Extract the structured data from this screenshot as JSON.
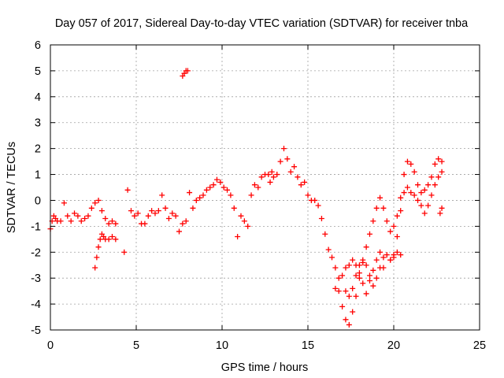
{
  "chart_data": {
    "type": "scatter",
    "title": "Day 057 of 2017, Sidereal Day-to-day VTEC variation (SDTVAR) for receiver tnba",
    "xlabel": "GPS time / hours",
    "ylabel": "SDTVAR / TECUs",
    "xlim": [
      0,
      25
    ],
    "ylim": [
      -5,
      6
    ],
    "xticks": [
      0,
      5,
      10,
      15,
      20,
      25
    ],
    "yticks": [
      -5,
      -4,
      -3,
      -2,
      -1,
      0,
      1,
      2,
      3,
      4,
      5,
      6
    ],
    "grid": true,
    "marker": "+",
    "series": [
      {
        "name": "SDTVAR",
        "color": "#ff0000",
        "x": [
          0.0,
          0.1,
          0.2,
          0.3,
          0.4,
          0.6,
          0.8,
          1.0,
          1.2,
          1.4,
          1.6,
          1.8,
          2.0,
          2.2,
          2.4,
          2.6,
          2.8,
          3.0,
          3.2,
          3.4,
          3.6,
          3.8,
          2.6,
          2.7,
          2.8,
          2.9,
          3.0,
          3.1,
          3.2,
          3.4,
          3.6,
          3.8,
          4.3,
          4.5,
          4.7,
          4.9,
          5.1,
          5.3,
          5.5,
          5.7,
          5.9,
          6.1,
          6.3,
          6.5,
          6.7,
          6.9,
          7.1,
          7.3,
          7.5,
          7.7,
          7.9,
          8.1,
          8.3,
          8.5,
          8.7,
          8.9,
          9.1,
          9.3,
          9.5,
          9.7,
          9.9,
          10.1,
          10.3,
          10.5,
          10.7,
          10.9,
          11.1,
          11.3,
          11.5,
          11.7,
          11.9,
          12.1,
          12.3,
          12.5,
          12.7,
          12.9,
          7.7,
          7.8,
          7.9,
          8.0,
          12.8,
          13.0,
          13.2,
          13.4,
          13.6,
          13.8,
          14.0,
          14.2,
          14.4,
          14.6,
          14.8,
          15.0,
          15.2,
          15.4,
          15.6,
          15.8,
          16.0,
          16.2,
          16.4,
          16.6,
          16.8,
          17.0,
          17.2,
          17.4,
          17.6,
          17.8,
          18.0,
          18.2,
          18.4,
          18.6,
          18.8,
          19.0,
          19.2,
          19.4,
          19.6,
          19.8,
          20.0,
          20.2,
          20.4,
          20.6,
          20.8,
          21.0,
          21.2,
          21.4,
          21.6,
          21.8,
          22.0,
          22.2,
          22.4,
          22.6,
          22.8,
          16.6,
          16.8,
          17.0,
          17.2,
          17.4,
          17.6,
          17.8,
          18.0,
          18.2,
          18.4,
          18.6,
          18.8,
          19.0,
          19.2,
          19.4,
          17.2,
          17.4,
          17.6,
          17.8,
          18.0,
          18.2,
          18.4,
          18.6,
          18.8,
          19.0,
          19.2,
          19.4,
          19.6,
          19.8,
          20.0,
          20.2,
          20.4,
          20.6,
          20.8,
          21.0,
          21.2,
          21.4,
          21.6,
          21.8,
          22.0,
          22.2,
          22.4,
          22.6,
          22.8,
          19.8,
          20.0,
          20.2,
          20.4,
          22.7,
          22.8
        ],
        "y": [
          -1.1,
          -0.8,
          -0.6,
          -0.7,
          -0.8,
          -0.8,
          -0.1,
          -0.6,
          -0.8,
          -0.5,
          -0.6,
          -0.8,
          -0.7,
          -0.6,
          -0.3,
          -0.1,
          0.0,
          -0.4,
          -0.7,
          -0.9,
          -0.8,
          -0.9,
          -2.6,
          -2.2,
          -1.8,
          -1.5,
          -1.3,
          -1.4,
          -1.5,
          -1.5,
          -1.4,
          -1.5,
          -2.0,
          0.4,
          -0.4,
          -0.6,
          -0.5,
          -0.9,
          -0.9,
          -0.6,
          -0.4,
          -0.5,
          -0.4,
          0.2,
          -0.3,
          -0.7,
          -0.5,
          -0.6,
          -1.2,
          -0.9,
          -0.8,
          0.3,
          -0.3,
          0.0,
          0.1,
          0.2,
          0.4,
          0.5,
          0.6,
          0.8,
          0.7,
          0.5,
          0.4,
          0.2,
          -0.3,
          -1.4,
          -0.6,
          -0.8,
          -1.0,
          0.2,
          0.6,
          0.5,
          0.9,
          1.0,
          1.0,
          1.1,
          4.8,
          4.9,
          5.0,
          5.0,
          0.7,
          0.9,
          1.0,
          1.5,
          2.0,
          1.6,
          1.1,
          1.3,
          0.9,
          0.6,
          0.7,
          0.2,
          0.0,
          0.0,
          -0.2,
          -0.7,
          -1.3,
          -1.9,
          -2.2,
          -2.6,
          -3.5,
          -4.1,
          -4.6,
          -4.8,
          -4.3,
          -3.7,
          -3.0,
          -2.4,
          -1.8,
          -1.3,
          -0.8,
          -0.3,
          0.1,
          -0.3,
          -0.8,
          -1.2,
          -1.0,
          -0.6,
          0.1,
          1.0,
          1.5,
          1.4,
          1.1,
          0.6,
          0.3,
          0.4,
          0.6,
          0.9,
          1.4,
          1.6,
          1.5,
          -3.4,
          -3.0,
          -2.9,
          -2.6,
          -2.5,
          -2.3,
          -2.5,
          -2.8,
          -3.2,
          -3.6,
          -3.1,
          -2.7,
          -2.3,
          -2.0,
          -2.6,
          -3.5,
          -3.7,
          -3.4,
          -2.9,
          -2.5,
          -2.3,
          -2.5,
          -2.9,
          -3.3,
          -3.0,
          -2.6,
          -2.2,
          -2.1,
          -2.3,
          -2.1,
          -1.4,
          -0.4,
          0.3,
          0.5,
          0.3,
          0.2,
          0.0,
          -0.2,
          -0.5,
          -0.2,
          0.2,
          0.6,
          0.9,
          1.1,
          -2.3,
          -2.2,
          -2.0,
          -2.1,
          -0.5,
          -0.3
        ]
      }
    ]
  }
}
